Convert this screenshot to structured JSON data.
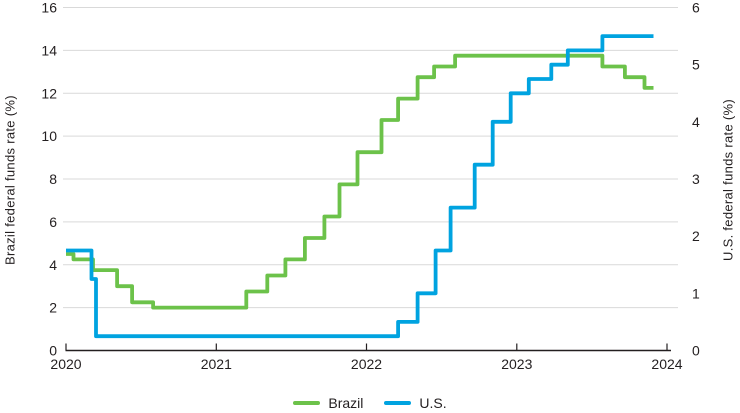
{
  "chart_data": {
    "type": "line",
    "subtype": "step-after",
    "title": "",
    "x_unit": "years since 2020",
    "x_range": [
      0,
      4
    ],
    "x_end": 3.91,
    "grid": true,
    "grid_color": "#d9d9d9",
    "axis_color": "#231f20",
    "legend_position": "bottom-center",
    "x_axis": {
      "ticks": [
        {
          "t": 0,
          "label": "2020"
        },
        {
          "t": 1,
          "label": "2021"
        },
        {
          "t": 2,
          "label": "2022"
        },
        {
          "t": 3,
          "label": "2023"
        },
        {
          "t": 4,
          "label": "2024"
        }
      ]
    },
    "left_axis": {
      "title": "Brazil federal funds rate (%)",
      "range": [
        0,
        16
      ],
      "ticks": [
        0,
        2,
        4,
        6,
        8,
        10,
        12,
        14,
        16
      ]
    },
    "right_axis": {
      "title": "U.S. federal funds rate (%)",
      "range": [
        0,
        6
      ],
      "ticks": [
        0,
        1,
        2,
        3,
        4,
        5,
        6
      ]
    },
    "series": [
      {
        "name": "Brazil",
        "axis": "left",
        "color": "#6cc24a",
        "steps": [
          [
            0,
            4.5
          ],
          [
            0.05,
            4.25
          ],
          [
            0.18,
            3.75
          ],
          [
            0.34,
            3.0
          ],
          [
            0.44,
            2.25
          ],
          [
            0.58,
            2.0
          ],
          [
            1.2,
            2.75
          ],
          [
            1.34,
            3.5
          ],
          [
            1.46,
            4.25
          ],
          [
            1.59,
            5.25
          ],
          [
            1.72,
            6.25
          ],
          [
            1.82,
            7.75
          ],
          [
            1.94,
            9.25
          ],
          [
            2.1,
            10.75
          ],
          [
            2.21,
            11.75
          ],
          [
            2.34,
            12.75
          ],
          [
            2.45,
            13.25
          ],
          [
            2.59,
            13.75
          ],
          [
            3.57,
            13.25
          ],
          [
            3.72,
            12.75
          ],
          [
            3.85,
            12.25
          ]
        ]
      },
      {
        "name": "U.S.",
        "axis": "right",
        "color": "#00a3e0",
        "steps": [
          [
            0,
            1.75
          ],
          [
            0.17,
            1.25
          ],
          [
            0.2,
            0.25
          ],
          [
            2.21,
            0.5
          ],
          [
            2.34,
            1.0
          ],
          [
            2.46,
            1.75
          ],
          [
            2.56,
            2.5
          ],
          [
            2.72,
            3.25
          ],
          [
            2.84,
            4.0
          ],
          [
            2.96,
            4.5
          ],
          [
            3.08,
            4.75
          ],
          [
            3.23,
            5.0
          ],
          [
            3.34,
            5.25
          ],
          [
            3.57,
            5.5
          ]
        ]
      }
    ]
  }
}
